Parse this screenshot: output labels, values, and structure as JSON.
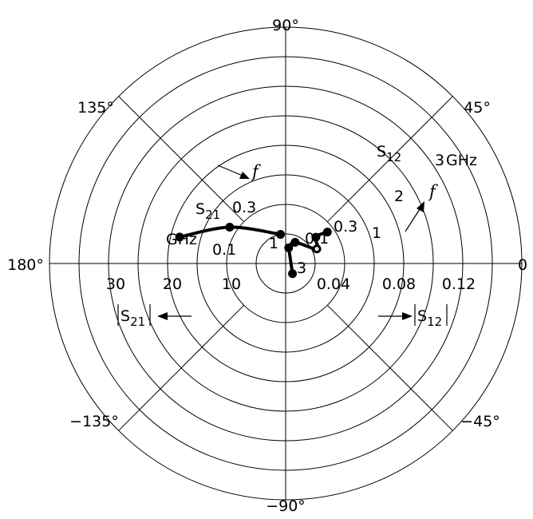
{
  "chart_data": {
    "type": "polar",
    "angle_labels": [
      {
        "angle": 90,
        "text": "90°"
      },
      {
        "angle": 45,
        "text": "45°"
      },
      {
        "angle": 135,
        "text": "135°"
      },
      {
        "angle": 180,
        "text": "180°"
      },
      {
        "angle": 0,
        "text": "0"
      },
      {
        "angle": -45,
        "text": "−45°"
      },
      {
        "angle": -135,
        "text": "−135°"
      },
      {
        "angle": -90,
        "text": "−90°"
      }
    ],
    "s21_axis": {
      "label": "|S21|",
      "ticks": [
        "30",
        "20",
        "10"
      ]
    },
    "s12_axis": {
      "label": "|S12|",
      "ticks": [
        "0.04",
        "0.08",
        "0.12"
      ]
    },
    "series": [
      {
        "name": "S21",
        "points": [
          {
            "freq_label": "0.1",
            "freq_unit_label": "GHz",
            "magnitude": 18.5,
            "angle_deg": 166
          },
          {
            "freq_label": "0.3",
            "magnitude": 11.3,
            "angle_deg": 147
          },
          {
            "freq_label": "1",
            "magnitude": 5.0,
            "angle_deg": 100
          }
        ]
      },
      {
        "name": "S12",
        "points": [
          {
            "freq_label": "3",
            "magnitude": 0.0083,
            "angle_deg": -56
          },
          {
            "freq_label": "0.1",
            "magnitude": 0.0108,
            "angle_deg": 79
          },
          {
            "freq_label": "0.3",
            "magnitude": 0.0157,
            "angle_deg": 66
          },
          {
            "freq_label": "1",
            "magnitude": 0.0233,
            "angle_deg": 25
          },
          {
            "freq_label": "2",
            "magnitude": 0.0271,
            "angle_deg": 41
          },
          {
            "freq_label": "3",
            "freq_unit_label": "GHz",
            "magnitude": 0.0354,
            "angle_deg": 37
          }
        ]
      }
    ],
    "annotations": {
      "freq_arrow_label": "f"
    }
  }
}
